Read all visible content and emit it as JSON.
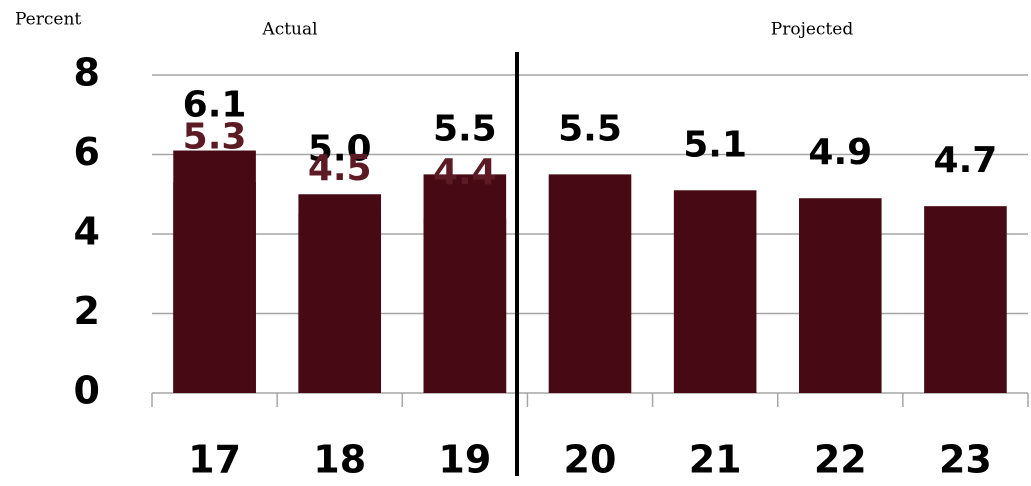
{
  "chart_data": {
    "type": "bar",
    "y_label": "Percent",
    "annotations": [
      "Actual",
      "Projected"
    ],
    "categories": [
      "17",
      "18",
      "19",
      "20",
      "21",
      "22",
      "23"
    ],
    "series": [
      {
        "color": "#470A14",
        "label_color": "#000000",
        "values": [
          6.1,
          5.0,
          5.5,
          5.5,
          5.1,
          4.9,
          4.7
        ],
        "value_labels": [
          "6.1",
          "5.0",
          "5.5",
          "5.5",
          "5.1",
          "4.9",
          "4.7"
        ]
      },
      {
        "color": "#470A14",
        "label_color": "#5C1A24",
        "values": [
          5.3,
          4.5,
          4.4,
          null,
          null,
          null,
          null
        ],
        "value_labels": [
          "5.3",
          "4.5",
          "4.4",
          null,
          null,
          null,
          null
        ]
      }
    ],
    "ylim": [
      0,
      8
    ],
    "yticks": [
      0,
      2,
      4,
      6,
      8
    ],
    "grid": true
  }
}
